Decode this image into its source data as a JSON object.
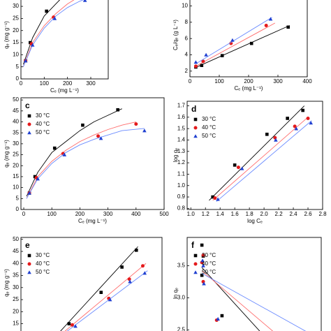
{
  "chart_data": [
    {
      "type": "scatter",
      "ylabel": "qₑ (mg g⁻¹)",
      "xlabel": "Cₑ (mg L⁻¹)",
      "xlim": [
        0,
        375
      ],
      "ylim": [
        0,
        33.2
      ],
      "xticks": [
        0,
        100,
        200,
        300
      ],
      "yticks": [
        0,
        5,
        10,
        15,
        20,
        25,
        30
      ],
      "series": [
        {
          "color": "#000000",
          "marker": "square",
          "x": [
            20,
            40,
            110
          ],
          "values": [
            7.5,
            15,
            28
          ],
          "fit_color": "#000000",
          "fit_x": [
            10,
            50,
            100,
            150,
            200,
            250,
            300,
            350
          ],
          "fit_y": [
            6,
            17,
            26,
            31,
            36,
            40,
            43,
            46
          ]
        },
        {
          "color": "#e41a1c",
          "marker": "circle",
          "x": [
            20,
            45,
            140,
            265
          ],
          "values": [
            7.5,
            14.5,
            25.5,
            33.5
          ],
          "fit_color": "#ff6b6b",
          "fit_x": [
            10,
            50,
            100,
            150,
            200,
            250,
            300,
            350,
            400
          ],
          "fit_y": [
            5,
            15,
            22,
            27,
            31,
            34,
            36.5,
            38.5,
            40
          ]
        },
        {
          "color": "#1f3fd0",
          "marker": "triangle",
          "x": [
            20,
            50,
            145,
            275
          ],
          "values": [
            7.5,
            14,
            25,
            32.5
          ],
          "fit_color": "#6a8bff",
          "fit_x": [
            10,
            50,
            100,
            150,
            200,
            250,
            300,
            350,
            430
          ],
          "fit_y": [
            5,
            14,
            21,
            26,
            29.5,
            32,
            34,
            36,
            37
          ]
        }
      ]
    },
    {
      "type": "scatter",
      "ylabel": "Cₑ/qₑ (g L⁻¹)",
      "xlabel": "Cₑ (mg L⁻¹)",
      "xlim": [
        0,
        400
      ],
      "ylim": [
        1.3,
        10.9
      ],
      "xticks": [
        0,
        100,
        200,
        300,
        400
      ],
      "yticks": [
        2,
        4,
        6,
        8,
        10
      ],
      "series": [
        {
          "color": "#000000",
          "marker": "square",
          "x": [
            20,
            40,
            110,
            210,
            335
          ],
          "values": [
            2.5,
            2.7,
            3.9,
            5.4,
            7.4
          ],
          "fit_color": "#000000",
          "fit_x": [
            20,
            340
          ],
          "fit_y": [
            2.45,
            7.6
          ]
        },
        {
          "color": "#e41a1c",
          "marker": "circle",
          "x": [
            20,
            45,
            140,
            260
          ],
          "values": [
            2.6,
            3.2,
            5.4,
            7.6
          ],
          "fit_color": "#ff6b6b",
          "fit_x": [
            20,
            290
          ],
          "fit_y": [
            2.6,
            7.9
          ]
        },
        {
          "color": "#1f3fd0",
          "marker": "triangle",
          "x": [
            20,
            55,
            145,
            275
          ],
          "values": [
            3.1,
            4.0,
            5.8,
            8.4
          ],
          "fit_color": "#6a8bff",
          "fit_x": [
            20,
            280
          ],
          "fit_y": [
            2.9,
            8.6
          ]
        }
      ]
    },
    {
      "type": "scatter",
      "label": "c",
      "ylabel": "qₑ (mg g⁻¹)",
      "xlabel": "Cₑ (mg L⁻¹)",
      "xlim": [
        -10,
        500
      ],
      "ylim": [
        0,
        51
      ],
      "xticks": [
        0,
        100,
        200,
        300,
        400,
        500
      ],
      "yticks": [
        0,
        5,
        10,
        15,
        20,
        25,
        30,
        35,
        40,
        45,
        50
      ],
      "series": [
        {
          "name": "30 °C",
          "color": "#000000",
          "marker": "square",
          "x": [
            20,
            40,
            110,
            210,
            335
          ],
          "values": [
            7.5,
            15,
            28,
            38.5,
            45.5
          ],
          "fit_color": "#000000",
          "fit_x": [
            10,
            50,
            100,
            150,
            200,
            250,
            300,
            350
          ],
          "fit_y": [
            6,
            17,
            26,
            31,
            36,
            40,
            43,
            46
          ]
        },
        {
          "name": "40 °C",
          "color": "#e41a1c",
          "marker": "circle",
          "x": [
            20,
            45,
            140,
            265,
            400
          ],
          "values": [
            7.5,
            14.5,
            25.5,
            33.5,
            39
          ],
          "fit_color": "#ff6b6b",
          "fit_x": [
            10,
            50,
            100,
            150,
            200,
            250,
            300,
            350,
            400
          ],
          "fit_y": [
            5,
            15,
            22,
            27,
            31,
            34,
            36.5,
            38.5,
            40
          ]
        },
        {
          "name": "50 °C",
          "color": "#1f3fd0",
          "marker": "triangle",
          "x": [
            20,
            50,
            145,
            275,
            430
          ],
          "values": [
            7.5,
            14,
            25,
            32.5,
            36
          ],
          "fit_color": "#6a8bff",
          "fit_x": [
            10,
            50,
            100,
            150,
            200,
            250,
            300,
            350,
            430
          ],
          "fit_y": [
            5,
            14,
            21,
            26,
            29.5,
            32,
            34,
            36,
            37
          ]
        }
      ]
    },
    {
      "type": "scatter",
      "label": "d",
      "ylabel": "log qₑ",
      "xlabel": "log Cₑ",
      "xlim": [
        0.95,
        2.8
      ],
      "ylim": [
        0.79,
        1.74
      ],
      "xticks": [
        {
          "value": 1,
          "label": "1.0"
        },
        1.2,
        1.4,
        1.6,
        1.8,
        {
          "value": 2,
          "label": "2.0"
        },
        2.2,
        2.4,
        2.6,
        2.8
      ],
      "yticks": [
        0.8,
        0.9,
        {
          "value": 1,
          "label": "1.0"
        },
        1.1,
        1.2,
        1.3,
        1.4,
        1.5,
        1.6,
        1.7
      ],
      "series": [
        {
          "name": "30 °C",
          "color": "#000000",
          "marker": "square",
          "x": [
            1.3,
            1.6,
            2.04,
            2.32,
            2.53
          ],
          "values": [
            0.9,
            1.18,
            1.45,
            1.59,
            1.66
          ],
          "fit_color": "#000000",
          "fit_x": [
            1.25,
            2.55
          ],
          "fit_y": [
            0.87,
            1.7
          ]
        },
        {
          "name": "40 °C",
          "color": "#e41a1c",
          "marker": "circle",
          "x": [
            1.33,
            1.65,
            2.15,
            2.42,
            2.6
          ],
          "values": [
            0.89,
            1.16,
            1.42,
            1.52,
            1.59
          ],
          "fit_color": "#ff6b6b",
          "fit_x": [
            1.3,
            2.6
          ],
          "fit_y": [
            0.87,
            1.6
          ]
        },
        {
          "name": "50 °C",
          "color": "#1f3fd0",
          "marker": "triangle",
          "x": [
            1.37,
            1.7,
            2.16,
            2.44,
            2.64
          ],
          "values": [
            0.88,
            1.15,
            1.4,
            1.5,
            1.55
          ],
          "fit_color": "#6a8bff",
          "fit_x": [
            1.35,
            2.65
          ],
          "fit_y": [
            0.86,
            1.57
          ]
        }
      ]
    },
    {
      "type": "scatter",
      "label": "e",
      "ylabel": "qₑ (mg g⁻¹)",
      "xlim": [
        2.2,
        6.6
      ],
      "ylim": [
        11.4,
        50.8
      ],
      "yticks": [
        15,
        20,
        25,
        30,
        35,
        40,
        45,
        50
      ],
      "series": [
        {
          "name": "30 °C",
          "color": "#000000",
          "marker": "square",
          "x": [
            3.7,
            4.7,
            5.35,
            5.8
          ],
          "values": [
            15,
            28,
            38.5,
            45.5
          ],
          "fit_color": "#000000",
          "fit_x": [
            3.3,
            5.85
          ],
          "fit_y": [
            10,
            47
          ]
        },
        {
          "name": "40 °C",
          "color": "#e41a1c",
          "marker": "circle",
          "x": [
            3.8,
            4.94,
            5.58,
            6.0
          ],
          "values": [
            14.5,
            25.5,
            33.5,
            39
          ],
          "fit_color": "#ff6b6b",
          "fit_x": [
            3.4,
            6.1
          ],
          "fit_y": [
            10,
            40
          ]
        },
        {
          "name": "50 °C",
          "color": "#1f3fd0",
          "marker": "triangle",
          "x": [
            3.9,
            4.98,
            5.6,
            6.06
          ],
          "values": [
            14,
            25,
            32.5,
            36
          ],
          "fit_color": "#6a8bff",
          "fit_x": [
            3.45,
            6.15
          ],
          "fit_y": [
            10,
            37
          ]
        }
      ]
    },
    {
      "type": "scatter",
      "label": "f",
      "ylabel": "ln qₑ",
      "xlim": [
        0,
        10
      ],
      "ylim": [
        2.46,
        3.94
      ],
      "yticks": [
        2.5,
        {
          "value": 3,
          "label": "3.0"
        },
        3.5
      ],
      "series": [
        {
          "name": "30 °C",
          "color": "#000000",
          "marker": "square",
          "x": [
            1.1,
            1.2,
            1.1,
            2.6
          ],
          "values": [
            3.82,
            3.65,
            3.35,
            2.72
          ],
          "fit_color": "#000000",
          "fit_x": [
            1.1,
            5.5
          ],
          "fit_y": [
            3.47,
            2.46
          ]
        },
        {
          "name": "40 °C",
          "color": "#e41a1c",
          "marker": "circle",
          "x": [
            1.2,
            1.1,
            1.2,
            2.2
          ],
          "values": [
            3.66,
            3.55,
            3.25,
            2.65
          ],
          "fit_color": "#ff6b6b",
          "fit_x": [
            1.1,
            6.5
          ],
          "fit_y": [
            3.42,
            2.46
          ]
        },
        {
          "name": "50 °C",
          "color": "#1f3fd0",
          "marker": "triangle",
          "x": [
            1.15,
            1.2,
            1.25,
            2.3
          ],
          "values": [
            3.58,
            3.5,
            3.22,
            2.67
          ],
          "fit_color": "#6a8bff",
          "fit_x": [
            1.1,
            9
          ],
          "fit_y": [
            3.38,
            2.46
          ]
        }
      ]
    }
  ]
}
